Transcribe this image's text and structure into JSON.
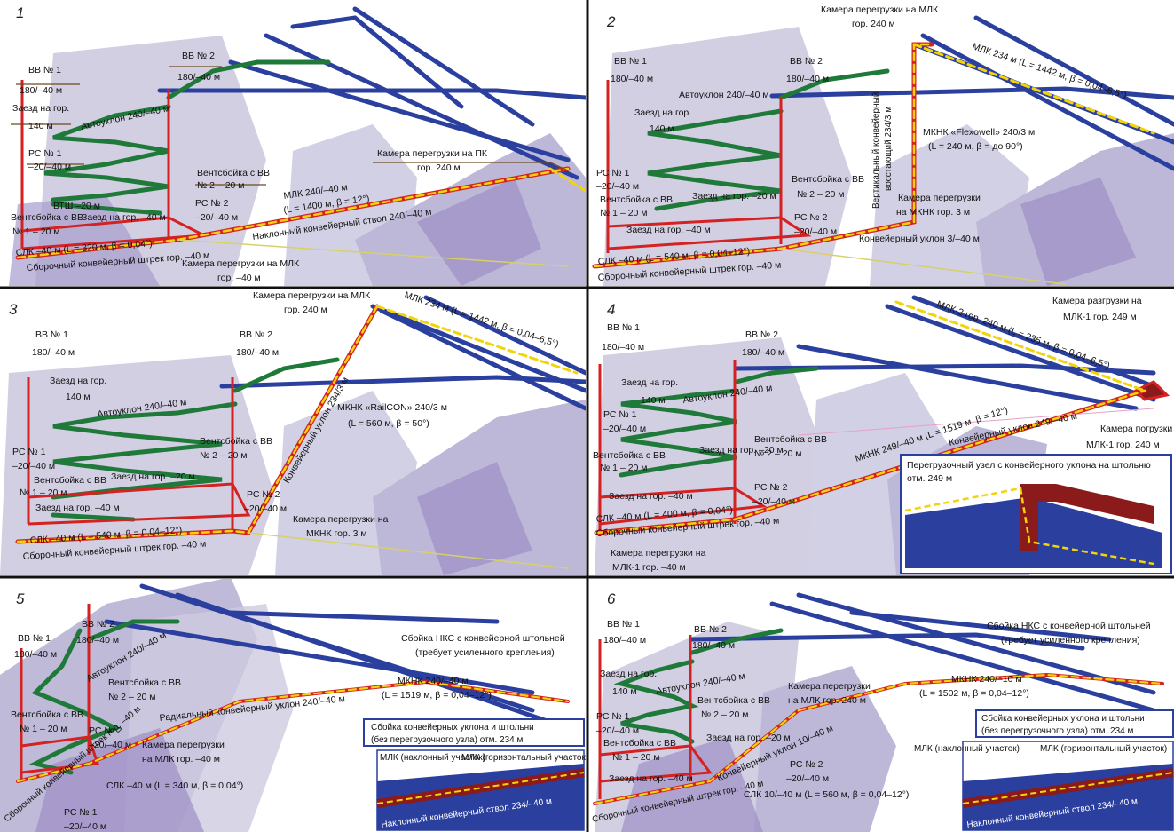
{
  "panels": [
    {
      "number": "1",
      "labels": [
        "ВВ № 1",
        "180/–40 м",
        "ВВ № 2",
        "180/–40 м",
        "Заезд на гор.",
        "140 м",
        "Автоуклон 240/–40 м",
        "РС № 1",
        "–20/–40 м",
        "ВТШ –20 м",
        "Вентсбойка с ВВ",
        "№ 2 – 20 м",
        "РС № 2",
        "–20/–40 м",
        "Заезд на гор. –40 м",
        "Вентсбойка с ВВ",
        "№ 1 – 20 м",
        "МЛК 240/–40 м",
        "(L = 1400 м, β = 12°)",
        "Наклонный конвейерный ствол 240/–40 м",
        "Камера перегрузки на ПК",
        "гор. 240 м",
        "СЛК –40 м (L = 320 м, β = 0,04°)",
        "Сборочный конвейерный штрек гор. –40 м",
        "Камера перегрузки на МЛК",
        "гор. –40 м"
      ]
    },
    {
      "number": "2",
      "labels": [
        "ВВ № 1",
        "180/–40 м",
        "ВВ № 2",
        "180/–40 м",
        "Автоуклон 240/–40 м",
        "Заезд на гор.",
        "140 м",
        "Камера перегрузки на МЛК",
        "гор. 240 м",
        "МЛК 234 м (L = 1442 м, β = 0,04–6,5°)",
        "Вертикальный конвейерный",
        "восстающий 234/3 м",
        "МКНК «Flexowell» 240/3 м",
        "(L = 240 м, β = до 90°)",
        "РС № 1",
        "–20/–40 м",
        "Вентсбойка с ВВ",
        "№ 1 – 20 м",
        "Заезд на гор. –20 м",
        "Вентсбойка с ВВ",
        "№ 2 – 20 м",
        "Камера перегрузки",
        "на МКНК гор. 3 м",
        "Заезд на гор. –40 м",
        "РС № 2",
        "–20/–40 м",
        "Конвейерный уклон 3/–40 м",
        "СЛК –40 м (L = 540 м, β = 0,04–12°)",
        "Сборочный конвейерный штрек гор. –40 м"
      ]
    },
    {
      "number": "3",
      "labels": [
        "ВВ № 1",
        "180/–40 м",
        "ВВ № 2",
        "180/–40 м",
        "Камера перегрузки на МЛК",
        "гор. 240 м",
        "МЛК 234 м (L = 1442 м, β = 0,04–6,5°)",
        "Заезд на гор.",
        "140 м",
        "Автоуклон 240/–40 м",
        "Конвейерный уклон 234/3 м",
        "МКНК «RailCON» 240/3 м",
        "(L = 560 м, β = 50°)",
        "РС № 1",
        "–20/–40 м",
        "Вентсбойка с ВВ",
        "№ 2 – 20 м",
        "Вентсбойка с ВВ",
        "№ 1 – 20 м",
        "Заезд на гор. –20 м",
        "Заезд на гор. –40 м",
        "РС № 2",
        "–20/–40 м",
        "Камера перегрузки на",
        "МКНК гор. 3 м",
        "СЛК –40 м (L = 540 м, β = 0,04–12°)",
        "Сборочный конвейерный штрек гор. –40 м"
      ]
    },
    {
      "number": "4",
      "labels": [
        "ВВ № 1",
        "180/–40 м",
        "ВВ № 2",
        "180/–40 м",
        "МЛК-2 гор. 240 м (L = 235 м, β = 0,04–6,5°)",
        "Камера разгрузки на",
        "МЛК-1 гор. 249 м",
        "Заезд на гор.",
        "140 м",
        "Автоуклон 240/–40 м",
        "РС № 1",
        "–20/–40 м",
        "МКНК 249/–40 м (L = 1519 м, β = 12°)",
        "Конвейерный уклон 249/–40 м",
        "Камера погрузки",
        "МЛК-1 гор. 240 м",
        "Вентсбойка с ВВ",
        "№ 1 – 20 м",
        "Заезд на гор. –20 м",
        "Вентсбойка с ВВ",
        "№ 2 – 20 м",
        "Заезд на гор. –40 м",
        "РС № 2",
        "–20/–40 м",
        "СЛК –40 м (L = 400 м, β = 0,04°)",
        "Сборочный конвейерный штрек гор. –40 м",
        "Камера перегрузки на",
        "МЛК-1 гор. –40 м"
      ],
      "inset_title": [
        "Перегрузочный узел с конвейерного уклона на штольню",
        "отм. 249 м"
      ]
    },
    {
      "number": "5",
      "labels": [
        "ВВ № 1",
        "180/–40 м",
        "ВВ № 2",
        "180/–40 м",
        "Автоуклон 240/–40 м",
        "Сбойка НКС с конвейерной штольней",
        "(требует усиленного крепления)",
        "Вентсбойка с ВВ",
        "№ 2 – 20 м",
        "МКНК 240/–40 м",
        "(L = 1519 м, β = 0,04–12°)",
        "Радиальный конвейерный уклон 240/–40 м",
        "Вентсбойка с ВВ",
        "№ 1 – 20 м",
        "РС № 2",
        "–20/–40 м",
        "Камера перегрузки",
        "на МЛК гор. –40 м",
        "Сбойка конвейерных уклона и штольни",
        "(без перегрузочного узла) отм. 234 м",
        "МЛК (наклонный участок)",
        "МЛК (горизонтальный участок)",
        "СЛК –40 м (L = 340 м, β = 0,04°)",
        "Сборочный конвейерный штрек гор. –40 м",
        "Наклонный конвейерный ствол 234/–40 м",
        "РС № 1",
        "–20/–40 м"
      ]
    },
    {
      "number": "6",
      "labels": [
        "ВВ № 1",
        "180/–40 м",
        "ВВ № 2",
        "180/–40 м",
        "Сбойка НКС с конвейерной штольней",
        "(требует усиленного крепления)",
        "Заезд на гор.",
        "140 м",
        "Автоуклон 240/–40 м",
        "МКНК 240/–10 м",
        "(L = 1502 м, β = 0,04–12°)",
        "Камера перегрузки",
        "на МЛК гор. 240 м",
        "РС № 1",
        "–20/–40 м",
        "Вентсбойка с ВВ",
        "№ 2 – 20 м",
        "Сбойка конвейерных уклона и штольни",
        "(без перегрузочного узла) отм. 234 м",
        "Вентсбойка с ВВ",
        "№ 1 – 20 м",
        "Заезд на гор. –20 м",
        "Конвейерный уклон 10/–40 м",
        "МЛК (наклонный участок)",
        "МЛК (горизонтальный участок)",
        "Заезд на гор. –40 м",
        "РС № 2",
        "–20/–40 м",
        "СЛК 10/–40 м (L = 560 м, β = 0,04–12°)",
        "Сборочный конвейерный штрек гор. –40 м",
        "Наклонный конвейерный ствол 234/–40 м"
      ]
    }
  ],
  "colors": {
    "conveyor_blue": "#2a3f9e",
    "ramp_green": "#1f7a3a",
    "shaft_red": "#d42222",
    "conveyor_yellow": "#f2d40a",
    "rock_lavender": "#c9c6de",
    "rock_purple": "#9e8fc6",
    "inset_border": "#2a3f9e",
    "inset_red": "#8b1a1a"
  }
}
